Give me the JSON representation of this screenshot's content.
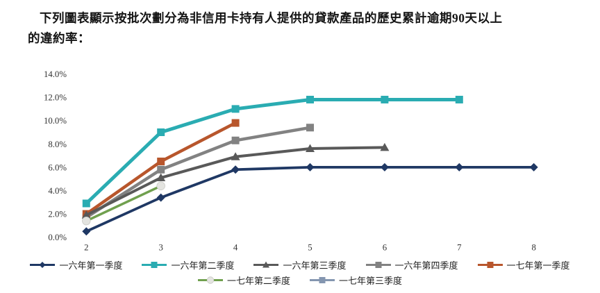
{
  "document": {
    "title_line1": "下列圖表顯示按批次劃分為非信用卡持有人提供的貸款產品的歷史累計逾期90天以上",
    "title_line2": "的違約率："
  },
  "chart_data": {
    "type": "line",
    "title": "",
    "xlabel": "",
    "ylabel": "",
    "xlim": [
      2,
      8
    ],
    "ylim": [
      0,
      14
    ],
    "y_unit": "%",
    "grid": false,
    "legend_position": "bottom",
    "x_tick_labels": [
      "2",
      "3",
      "4",
      "5",
      "6",
      "7",
      "8"
    ],
    "y_tick_labels": [
      "0.0%",
      "2.0%",
      "4.0%",
      "6.0%",
      "8.0%",
      "10.0%",
      "12.0%",
      "14.0%"
    ],
    "series": [
      {
        "name": "一六年第一季度",
        "marker": "diamond",
        "color": "#1f3864",
        "x": [
          2,
          3,
          4,
          5,
          6,
          7,
          8
        ],
        "values": [
          0.5,
          3.4,
          5.8,
          6.0,
          6.0,
          6.0,
          6.0
        ]
      },
      {
        "name": "一六年第二季度",
        "marker": "square",
        "color": "#2aacb2",
        "x": [
          2,
          3,
          4,
          5,
          6,
          7
        ],
        "values": [
          2.9,
          9.0,
          11.0,
          11.8,
          11.8,
          11.8
        ]
      },
      {
        "name": "一六年第三季度",
        "marker": "triangle",
        "color": "#595959",
        "x": [
          2,
          3,
          4,
          5,
          6
        ],
        "values": [
          1.9,
          5.1,
          6.9,
          7.6,
          7.7
        ]
      },
      {
        "name": "一六年第四季度",
        "marker": "square",
        "color": "#828282",
        "x": [
          2,
          3,
          4,
          5
        ],
        "values": [
          1.7,
          5.8,
          8.3,
          9.4
        ]
      },
      {
        "name": "一七年第一季度",
        "marker": "square",
        "color": "#b8562c",
        "x": [
          2,
          3,
          4
        ],
        "values": [
          2.0,
          6.5,
          9.8
        ]
      },
      {
        "name": "一七年第二季度",
        "marker": "circle",
        "color": "#70a04e",
        "marker_fill": "#e4e4e0",
        "x": [
          2,
          3
        ],
        "values": [
          1.4,
          4.4
        ]
      },
      {
        "name": "一七年第三季度",
        "marker": "square",
        "color": "#8496b0",
        "x": [
          2
        ],
        "values": [
          1.6
        ]
      }
    ]
  }
}
